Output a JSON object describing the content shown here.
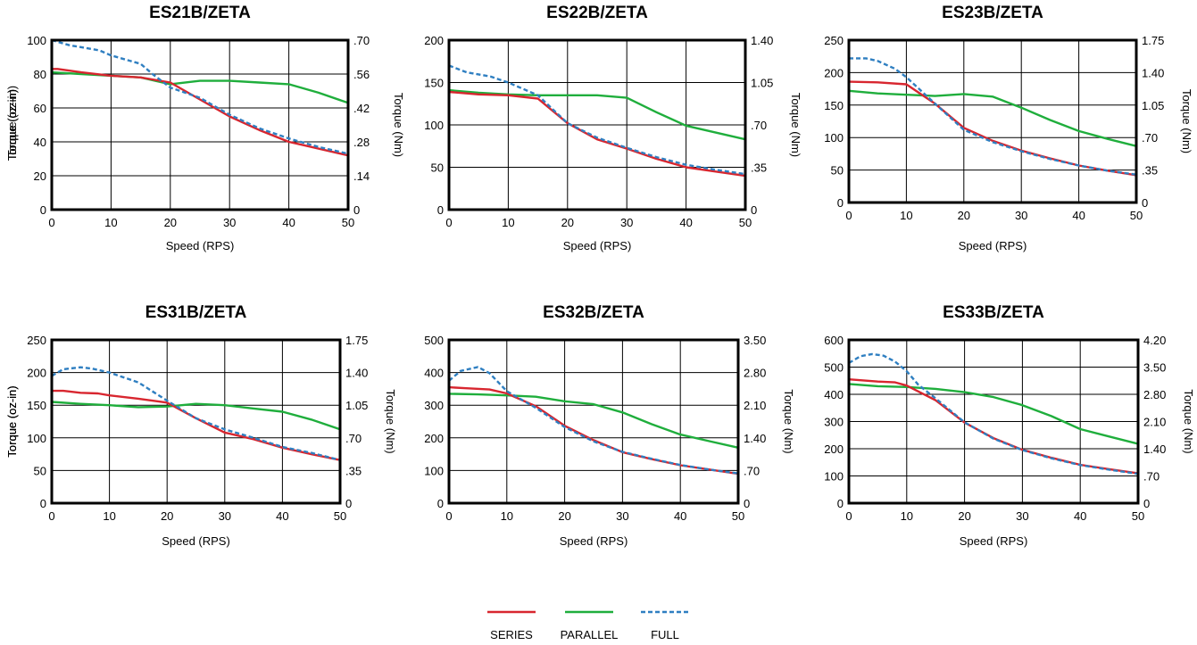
{
  "colors": {
    "series": "#d8262f",
    "parallel": "#1fae3c",
    "full": "#2f7fc1",
    "grid": "#000000"
  },
  "legend": {
    "placement": "bottom-center",
    "items": [
      {
        "key": "series",
        "label": "SERIES",
        "style": "solid"
      },
      {
        "key": "parallel",
        "label": "PARALLEL",
        "style": "solid"
      },
      {
        "key": "full",
        "label": "FULL",
        "style": "dashed"
      }
    ]
  },
  "chart_data": [
    {
      "type": "line",
      "title": "ES21B/ZETA",
      "xlabel": "Speed (RPS)",
      "ylabel": "Torque (oz-in)",
      "y2label": "Torque (Nm)",
      "xlim": [
        0,
        50
      ],
      "ylim": [
        0,
        100
      ],
      "xticks": [
        "0",
        "10",
        "20",
        "30",
        "40",
        "50"
      ],
      "yticks": [
        "0",
        "20",
        "40",
        "60",
        "80",
        "100"
      ],
      "y2ticks": [
        "0",
        ".14",
        ".28",
        ".42",
        ".56",
        ".70"
      ],
      "grid": true,
      "series": [
        {
          "key": "series",
          "x": [
            0,
            1,
            5,
            10,
            15,
            20,
            25,
            30,
            35,
            40,
            45,
            50
          ],
          "y": [
            83,
            83,
            81,
            79,
            78,
            75,
            65,
            55,
            47,
            40,
            36,
            32
          ]
        },
        {
          "key": "parallel",
          "x": [
            0,
            5,
            10,
            15,
            20,
            25,
            30,
            35,
            40,
            45,
            50
          ],
          "y": [
            81,
            80,
            79,
            78,
            74,
            76,
            76,
            75,
            74,
            69,
            63
          ]
        },
        {
          "key": "full",
          "x": [
            0,
            1,
            3,
            8,
            10,
            15,
            17,
            20,
            25,
            30,
            35,
            40,
            45,
            50
          ],
          "y": [
            100,
            99,
            97,
            94,
            91,
            86,
            80,
            72,
            66,
            56,
            48,
            42,
            37,
            33
          ]
        }
      ]
    },
    {
      "type": "line",
      "title": "ES22B/ZETA",
      "xlabel": "Speed (RPS)",
      "ylabel": "Torque (oz-in)",
      "y2label": "Torque (Nm)",
      "xlim": [
        0,
        50
      ],
      "ylim": [
        0,
        200
      ],
      "xticks": [
        "0",
        "10",
        "20",
        "30",
        "40",
        "50"
      ],
      "yticks": [
        "0",
        "50",
        "100",
        "150",
        "200"
      ],
      "y2ticks": [
        "0",
        ".35",
        ".70",
        "1.05",
        "1.40"
      ],
      "grid": true,
      "series": [
        {
          "key": "series",
          "x": [
            0,
            5,
            10,
            15,
            20,
            25,
            30,
            35,
            40,
            45,
            50
          ],
          "y": [
            139,
            136,
            135,
            131,
            102,
            83,
            72,
            60,
            50,
            45,
            40
          ]
        },
        {
          "key": "parallel",
          "x": [
            0,
            5,
            10,
            15,
            20,
            25,
            30,
            35,
            40,
            45,
            50
          ],
          "y": [
            141,
            138,
            136,
            135,
            135,
            135,
            132,
            115,
            99,
            91,
            83
          ]
        },
        {
          "key": "full",
          "x": [
            0,
            3,
            7,
            10,
            15,
            20,
            25,
            30,
            35,
            40,
            45,
            50
          ],
          "y": [
            170,
            162,
            157,
            150,
            135,
            102,
            85,
            73,
            62,
            53,
            47,
            42
          ]
        }
      ]
    },
    {
      "type": "line",
      "title": "ES23B/ZETA",
      "xlabel": "Speed (RPS)",
      "ylabel": "Torque (oz-in)",
      "y2label": "Torque (Nm)",
      "xlim": [
        0,
        50
      ],
      "ylim": [
        0,
        250
      ],
      "xticks": [
        "0",
        "10",
        "20",
        "30",
        "40",
        "50"
      ],
      "yticks": [
        "0",
        "50",
        "100",
        "150",
        "200",
        "250"
      ],
      "y2ticks": [
        "0",
        ".35",
        ".70",
        "1.05",
        "1.40",
        "1.75"
      ],
      "grid": true,
      "series": [
        {
          "key": "series",
          "x": [
            0,
            5,
            10,
            15,
            20,
            25,
            30,
            35,
            40,
            45,
            50
          ],
          "y": [
            186,
            185,
            182,
            152,
            115,
            95,
            80,
            68,
            57,
            49,
            42
          ]
        },
        {
          "key": "parallel",
          "x": [
            0,
            5,
            10,
            15,
            20,
            25,
            30,
            35,
            40,
            45,
            50
          ],
          "y": [
            172,
            168,
            166,
            164,
            167,
            163,
            146,
            127,
            110,
            98,
            87
          ]
        },
        {
          "key": "full",
          "x": [
            0,
            3,
            5,
            8,
            10,
            15,
            20,
            25,
            30,
            35,
            40,
            45,
            50
          ],
          "y": [
            222,
            222,
            218,
            206,
            193,
            152,
            112,
            93,
            79,
            67,
            57,
            49,
            43
          ]
        }
      ]
    },
    {
      "type": "line",
      "title": "ES31B/ZETA",
      "xlabel": "Speed (RPS)",
      "ylabel": "Torque (oz-in)",
      "y2label": "Torque (Nm)",
      "xlim": [
        0,
        50
      ],
      "ylim": [
        0,
        250
      ],
      "xticks": [
        "0",
        "10",
        "20",
        "30",
        "40",
        "50"
      ],
      "yticks": [
        "0",
        "50",
        "100",
        "150",
        "200",
        "250"
      ],
      "y2ticks": [
        "0",
        ".35",
        ".70",
        "1.05",
        "1.40",
        "1.75"
      ],
      "grid": true,
      "series": [
        {
          "key": "series",
          "x": [
            0,
            2,
            5,
            8,
            10,
            15,
            20,
            25,
            30,
            35,
            40,
            45,
            50
          ],
          "y": [
            172,
            172,
            169,
            168,
            165,
            160,
            154,
            130,
            108,
            98,
            85,
            75,
            66
          ]
        },
        {
          "key": "parallel",
          "x": [
            0,
            5,
            10,
            15,
            20,
            25,
            30,
            35,
            40,
            45,
            50
          ],
          "y": [
            155,
            152,
            150,
            147,
            148,
            152,
            150,
            145,
            140,
            128,
            113
          ]
        },
        {
          "key": "full",
          "x": [
            0,
            2,
            5,
            7,
            10,
            15,
            20,
            25,
            30,
            35,
            40,
            45,
            50
          ],
          "y": [
            195,
            205,
            208,
            206,
            200,
            185,
            157,
            130,
            113,
            100,
            86,
            77,
            66
          ]
        }
      ]
    },
    {
      "type": "line",
      "title": "ES32B/ZETA",
      "xlabel": "Speed (RPS)",
      "ylabel": "Torque (oz-in)",
      "y2label": "Torque (Nm)",
      "xlim": [
        0,
        50
      ],
      "ylim": [
        0,
        500
      ],
      "xticks": [
        "0",
        "10",
        "20",
        "30",
        "40",
        "50"
      ],
      "yticks": [
        "0",
        "100",
        "200",
        "300",
        "400",
        "500"
      ],
      "y2ticks": [
        "0",
        ".70",
        "1.40",
        "2.10",
        "2.80",
        "3.50"
      ],
      "grid": true,
      "series": [
        {
          "key": "series",
          "x": [
            0,
            3,
            7,
            10,
            15,
            20,
            25,
            30,
            35,
            40,
            45,
            50
          ],
          "y": [
            355,
            352,
            348,
            336,
            297,
            237,
            193,
            156,
            135,
            116,
            103,
            90
          ]
        },
        {
          "key": "parallel",
          "x": [
            0,
            5,
            10,
            15,
            20,
            25,
            30,
            35,
            40,
            45,
            50
          ],
          "y": [
            335,
            333,
            330,
            326,
            312,
            303,
            278,
            242,
            210,
            190,
            170
          ]
        },
        {
          "key": "full",
          "x": [
            0,
            2,
            5,
            7,
            10,
            15,
            20,
            25,
            30,
            35,
            40,
            45,
            50
          ],
          "y": [
            375,
            405,
            417,
            398,
            343,
            292,
            233,
            189,
            157,
            136,
            117,
            103,
            91
          ]
        }
      ]
    },
    {
      "type": "line",
      "title": "ES33B/ZETA",
      "xlabel": "Speed (RPS)",
      "ylabel": "Torque (oz-in)",
      "y2label": "Torque (Nm)",
      "xlim": [
        0,
        50
      ],
      "ylim": [
        0,
        600
      ],
      "xticks": [
        "0",
        "10",
        "20",
        "30",
        "40",
        "50"
      ],
      "yticks": [
        "0",
        "100",
        "200",
        "300",
        "400",
        "500",
        "600"
      ],
      "y2ticks": [
        "0",
        ".70",
        "1.40",
        "2.10",
        "2.80",
        "3.50",
        "4.20"
      ],
      "grid": true,
      "series": [
        {
          "key": "series",
          "x": [
            0,
            5,
            8,
            10,
            15,
            20,
            25,
            30,
            35,
            40,
            45,
            50
          ],
          "y": [
            455,
            447,
            444,
            432,
            378,
            296,
            239,
            196,
            167,
            141,
            125,
            110
          ]
        },
        {
          "key": "parallel",
          "x": [
            0,
            5,
            10,
            15,
            20,
            25,
            30,
            35,
            40,
            45,
            50
          ],
          "y": [
            438,
            430,
            427,
            420,
            408,
            390,
            360,
            320,
            272,
            245,
            218
          ]
        },
        {
          "key": "full",
          "x": [
            0,
            2,
            4,
            6,
            8,
            10,
            12,
            15,
            20,
            25,
            30,
            35,
            40,
            45,
            50
          ],
          "y": [
            515,
            540,
            548,
            542,
            520,
            485,
            435,
            385,
            297,
            237,
            195,
            165,
            140,
            123,
            108
          ]
        }
      ]
    }
  ]
}
